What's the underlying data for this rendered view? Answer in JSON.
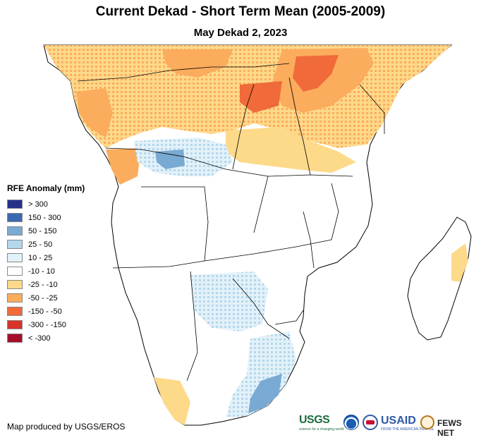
{
  "title": "Current Dekad - Short Term Mean (2005-2009)",
  "subtitle": "May Dekad 2, 2023",
  "legend": {
    "title": "RFE Anomaly (mm)",
    "items": [
      {
        "label": "> 300",
        "color": "#26318a"
      },
      {
        "label": "150 - 300",
        "color": "#3a69b3"
      },
      {
        "label": "50 - 150",
        "color": "#79aad3"
      },
      {
        "label": "25 - 50",
        "color": "#b3d7ec"
      },
      {
        "label": "10 - 25",
        "color": "#e3f1f9"
      },
      {
        "label": "-10 - 10",
        "color": "#ffffff"
      },
      {
        "label": "-25 - -10",
        "color": "#fdd98a"
      },
      {
        "label": "-50 - -25",
        "color": "#fbac5c"
      },
      {
        "label": "-150 - -50",
        "color": "#f06a3a"
      },
      {
        "label": "-300 - -150",
        "color": "#d8342a"
      },
      {
        "label": "< -300",
        "color": "#a50e2a"
      }
    ]
  },
  "credit": "Map produced by USGS/EROS",
  "logos": {
    "usgs": "USGS",
    "usgs_tagline": "science for a changing world",
    "usaid": "USAID",
    "usaid_tagline": "FROM THE AMERICAN PEOPLE",
    "fews": "FEWS NET"
  },
  "colors": {
    "land": "#ffffff",
    "border": "#000000",
    "ocean": "#ffffff"
  }
}
